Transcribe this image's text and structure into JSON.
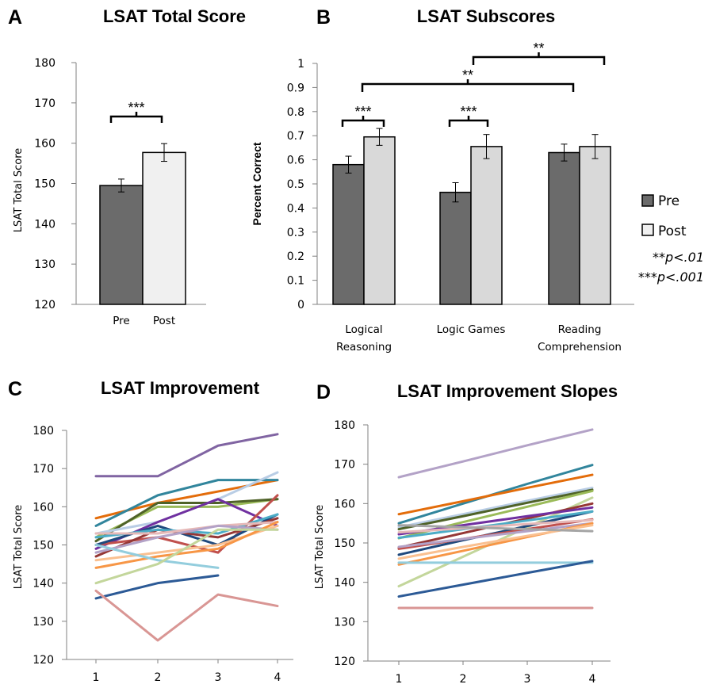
{
  "panels": {
    "a": {
      "letter": "A"
    },
    "b": {
      "letter": "B"
    },
    "c": {
      "letter": "C"
    },
    "d": {
      "letter": "D"
    }
  },
  "chart_data": [
    {
      "type": "bar",
      "title": "LSAT Total Score",
      "ylabel": "LSAT Total Score",
      "ylim": [
        120,
        180
      ],
      "yticks": [
        120,
        130,
        140,
        150,
        160,
        170,
        180
      ],
      "categories": [
        "Pre",
        "Post"
      ],
      "values": [
        149.5,
        157.7
      ],
      "errors": [
        1.6,
        2.2
      ],
      "colors": [
        "#6b6b6b",
        "#f0f0f0"
      ],
      "significance": [
        {
          "label": "***",
          "between": [
            "Pre",
            "Post"
          ]
        }
      ]
    },
    {
      "type": "bar",
      "title": "LSAT Subscores",
      "ylabel": "Percent Correct",
      "ylim": [
        0,
        1
      ],
      "yticks": [
        "0",
        "0.1",
        "0.2",
        "0.3",
        "0.4",
        "0.5",
        "0.6",
        "0.7",
        "0.8",
        "0.9",
        "1"
      ],
      "categories": [
        [
          "Logical",
          "Reasoning"
        ],
        [
          "Logic Games"
        ],
        [
          "Reading",
          "Comprehension"
        ]
      ],
      "series": [
        {
          "name": "Pre",
          "values": [
            0.58,
            0.465,
            0.63
          ],
          "errors": [
            0.035,
            0.04,
            0.035
          ],
          "color": "#6b6b6b"
        },
        {
          "name": "Post",
          "values": [
            0.695,
            0.655,
            0.655
          ],
          "errors": [
            0.035,
            0.05,
            0.05
          ],
          "color": "#d9d9d9"
        }
      ],
      "significance": [
        {
          "label": "***",
          "group": 0
        },
        {
          "label": "***",
          "group": 1
        },
        {
          "label": "**",
          "from_group": 0,
          "to_group": 2
        },
        {
          "label": "**",
          "from_group": 1,
          "to_group": 2
        }
      ],
      "legend": {
        "position": "right",
        "entries": [
          "Pre",
          "Post"
        ]
      },
      "notes": [
        {
          "stars": "**",
          "text": "p<.01"
        },
        {
          "stars": "***",
          "text": "p<.001"
        }
      ]
    },
    {
      "type": "line",
      "title": "LSAT Improvement",
      "ylabel": "LSAT Total Score",
      "ylim": [
        120,
        180
      ],
      "yticks": [
        120,
        130,
        140,
        150,
        160,
        170,
        180
      ],
      "x": [
        1,
        2,
        3,
        4
      ],
      "series": [
        {
          "color": "#8064a2",
          "values": [
            168,
            168,
            176,
            179
          ]
        },
        {
          "color": "#e36c0a",
          "values": [
            157,
            161,
            164,
            167
          ]
        },
        {
          "color": "#31859c",
          "values": [
            155,
            163,
            167,
            167
          ]
        },
        {
          "color": "#9bbb59",
          "values": [
            152,
            160,
            160,
            162
          ]
        },
        {
          "color": "#4f6228",
          "values": [
            151,
            161,
            161,
            162
          ]
        },
        {
          "color": "#b9cde5",
          "values": [
            153,
            156,
            162,
            169
          ]
        },
        {
          "color": "#7030a0",
          "values": [
            149,
            156,
            162,
            155
          ]
        },
        {
          "color": "#c0504d",
          "values": [
            150,
            152,
            148,
            163
          ]
        },
        {
          "color": "#1f497d",
          "values": [
            150,
            155,
            150,
            158
          ]
        },
        {
          "color": "#953735",
          "values": [
            147,
            154,
            152,
            157
          ]
        },
        {
          "color": "#4bacc6",
          "values": [
            152,
            154,
            153,
            158
          ]
        },
        {
          "color": "#e6b9b8",
          "values": [
            153,
            153,
            155,
            156
          ]
        },
        {
          "color": "#b3a2c7",
          "values": [
            148,
            152,
            155,
            154
          ]
        },
        {
          "color": "#fac090",
          "values": [
            146,
            148,
            150,
            155
          ]
        },
        {
          "color": "#f79646",
          "values": [
            144,
            147,
            149,
            156
          ]
        },
        {
          "color": "#93cddd",
          "values": [
            150,
            146,
            144,
            null
          ]
        },
        {
          "color": "#c3d69b",
          "values": [
            140,
            145,
            154,
            154
          ]
        },
        {
          "color": "#2c5a96",
          "values": [
            136,
            140,
            142,
            null
          ]
        },
        {
          "color": "#d99694",
          "values": [
            138,
            125,
            137,
            134
          ]
        }
      ]
    },
    {
      "type": "line",
      "title": "LSAT Improvement Slopes",
      "ylabel": "LSAT Total Score",
      "ylim": [
        120,
        180
      ],
      "yticks": [
        120,
        130,
        140,
        150,
        160,
        170,
        180
      ],
      "x": [
        1,
        2,
        3,
        4
      ],
      "series": [
        {
          "color": "#b3a2c7",
          "values": [
            166.7,
            170.7,
            174.8,
            178.8
          ]
        },
        {
          "color": "#31859c",
          "values": [
            155,
            160,
            165,
            169.8
          ]
        },
        {
          "color": "#e36c0a",
          "values": [
            157.3,
            160.6,
            164,
            167.3
          ]
        },
        {
          "color": "#b9cde5",
          "values": [
            154,
            157.3,
            160.7,
            164
          ]
        },
        {
          "color": "#4f6228",
          "values": [
            153.5,
            156.8,
            160.2,
            163.5
          ]
        },
        {
          "color": "#9bbb59",
          "values": [
            151.2,
            155.3,
            159.2,
            163.2
          ]
        },
        {
          "color": "#c3d69b",
          "values": [
            139,
            146.5,
            154,
            161.5
          ]
        },
        {
          "color": "#953735",
          "values": [
            148.8,
            152.5,
            156.2,
            160
          ]
        },
        {
          "color": "#7030a0",
          "values": [
            152.2,
            154.5,
            156.8,
            159
          ]
        },
        {
          "color": "#1f497d",
          "values": [
            147,
            150.7,
            154.3,
            158
          ]
        },
        {
          "color": "#4bacc6",
          "values": [
            151.3,
            153.5,
            155.7,
            158
          ]
        },
        {
          "color": "#c0504d",
          "values": [
            148.5,
            151,
            153.5,
            156
          ]
        },
        {
          "color": "#e6b9b8",
          "values": [
            152.7,
            153.7,
            154.8,
            155.8
          ]
        },
        {
          "color": "#b3a2c7",
          "values": [
            149,
            151,
            153,
            155
          ]
        },
        {
          "color": "#f79646",
          "values": [
            144.5,
            148,
            151.5,
            155
          ]
        },
        {
          "color": "#fac090",
          "values": [
            146,
            149,
            151.8,
            154.5
          ]
        },
        {
          "color": "#a5a5a5",
          "values": [
            154.5,
            154,
            153.5,
            153
          ]
        },
        {
          "color": "#93cddd",
          "values": [
            145,
            145,
            145,
            145
          ]
        },
        {
          "color": "#2c5a96",
          "values": [
            136.4,
            139.4,
            142.4,
            145.4
          ]
        },
        {
          "color": "#d99694",
          "values": [
            133.5,
            133.5,
            133.5,
            133.5
          ]
        }
      ]
    }
  ]
}
